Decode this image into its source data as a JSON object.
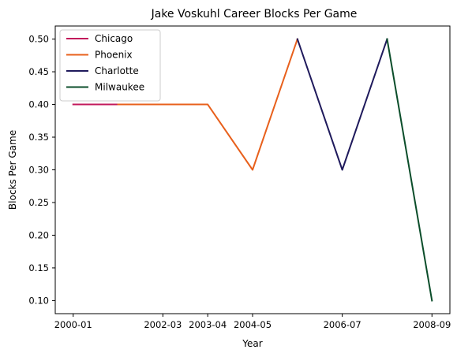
{
  "chart_data": {
    "type": "line",
    "title": "Jake Voskuhl Career Blocks Per Game",
    "xlabel": "Year",
    "ylabel": "Blocks Per Game",
    "x_tick_labels": [
      "2000-01",
      "2002-03",
      "2003-04",
      "2004-05",
      "2006-07",
      "2008-09"
    ],
    "y_tick_labels": [
      "0.10",
      "0.15",
      "0.20",
      "0.25",
      "0.30",
      "0.35",
      "0.40",
      "0.45",
      "0.50"
    ],
    "ylim": [
      0.08,
      0.52
    ],
    "grid": false,
    "legend_position": "top-left",
    "series": [
      {
        "name": "Chicago",
        "color": "#c2185b",
        "points": [
          [
            "2000-01",
            0.4
          ],
          [
            "2001-02",
            0.4
          ]
        ]
      },
      {
        "name": "Phoenix",
        "color": "#e8601c",
        "points": [
          [
            "2001-02",
            0.4
          ],
          [
            "2002-03",
            0.4
          ],
          [
            "2003-04",
            0.4
          ],
          [
            "2004-05",
            0.3
          ],
          [
            "2005-06",
            0.5
          ]
        ]
      },
      {
        "name": "Charlotte",
        "color": "#1f1a5c",
        "points": [
          [
            "2005-06",
            0.5
          ],
          [
            "2006-07",
            0.3
          ],
          [
            "2007-08",
            0.5
          ]
        ]
      },
      {
        "name": "Milwaukee",
        "color": "#0b4d2a",
        "points": [
          [
            "2007-08",
            0.5
          ],
          [
            "2008-09",
            0.1
          ]
        ]
      }
    ]
  }
}
